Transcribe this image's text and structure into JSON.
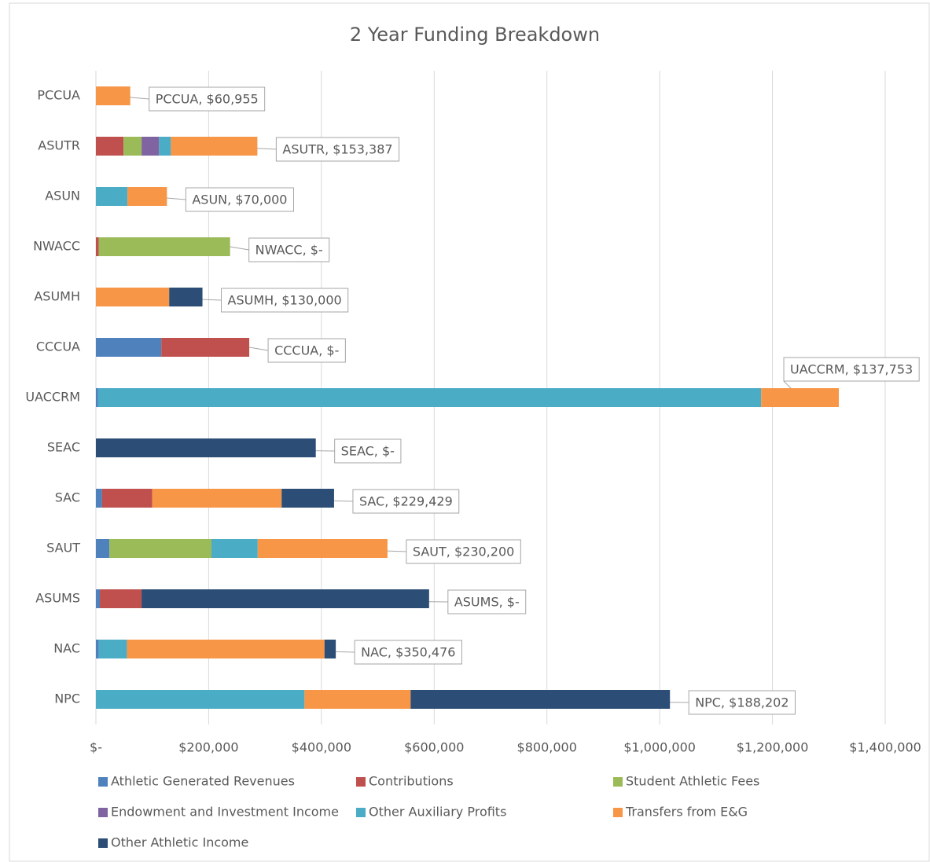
{
  "chart_data": {
    "type": "stacked-bar-horizontal",
    "title": "2 Year Funding Breakdown",
    "categories": [
      "PCCUA",
      "ASUTR",
      "ASUN",
      "NWACC",
      "ASUMH",
      "CCCUA",
      "UACCRM",
      "SEAC",
      "SAC",
      "SAUT",
      "ASUMS",
      "NAC",
      "NPC"
    ],
    "series": [
      {
        "name": "Athletic Generated Revenues",
        "color": "#4f81bd",
        "values": [
          0,
          0,
          0,
          0,
          0,
          116000,
          4000,
          0,
          11000,
          24000,
          7000,
          5000,
          0
        ]
      },
      {
        "name": "Contributions",
        "color": "#c0504d",
        "values": [
          0,
          49000,
          0,
          5000,
          0,
          156000,
          0,
          0,
          89000,
          0,
          74000,
          0,
          0
        ]
      },
      {
        "name": "Student Athletic Fees",
        "color": "#9bbb59",
        "values": [
          0,
          32000,
          0,
          233000,
          0,
          0,
          0,
          0,
          0,
          181000,
          0,
          0,
          0
        ]
      },
      {
        "name": "Endowment and Investment Income",
        "color": "#8064a2",
        "values": [
          0,
          31000,
          0,
          0,
          0,
          0,
          0,
          0,
          0,
          0,
          0,
          0,
          0
        ]
      },
      {
        "name": "Other Auxiliary Profits",
        "color": "#4bacc6",
        "values": [
          0,
          21000,
          56000,
          0,
          0,
          0,
          1176000,
          0,
          0,
          82000,
          0,
          50000,
          370000
        ]
      },
      {
        "name": "Transfers from E&G",
        "color": "#f79646",
        "values": [
          60955,
          153387,
          70000,
          0,
          130000,
          0,
          137753,
          0,
          229429,
          230200,
          0,
          350476,
          188202
        ],
        "value_labels": [
          "PCCUA,  $60,955",
          "ASUTR,  $153,387",
          "ASUN,  $70,000",
          "NWACC,  $-",
          "ASUMH,  $130,000",
          "CCCUA,  $-",
          "UACCRM,  $137,753",
          "SEAC,  $-",
          "SAC,  $229,429",
          "SAUT,  $230,200",
          "ASUMS,  $-",
          "NAC,  $350,476",
          "NPC,  $188,202"
        ]
      },
      {
        "name": "Other Athletic Income",
        "color": "#2c4d75",
        "values": [
          0,
          0,
          0,
          0,
          59000,
          0,
          0,
          390000,
          93000,
          0,
          510000,
          20000,
          460000
        ]
      }
    ],
    "xlim": [
      0,
      1400000
    ],
    "xticks": [
      {
        "value": 0,
        "label": "$-"
      },
      {
        "value": 200000,
        "label": "$200,000"
      },
      {
        "value": 400000,
        "label": "$400,000"
      },
      {
        "value": 600000,
        "label": "$600,000"
      },
      {
        "value": 800000,
        "label": "$800,000"
      },
      {
        "value": 1000000,
        "label": "$1,000,000"
      },
      {
        "value": 1200000,
        "label": "$1,200,000"
      },
      {
        "value": 1400000,
        "label": "$1,400,000"
      }
    ],
    "grid": true,
    "legend": "bottom"
  }
}
